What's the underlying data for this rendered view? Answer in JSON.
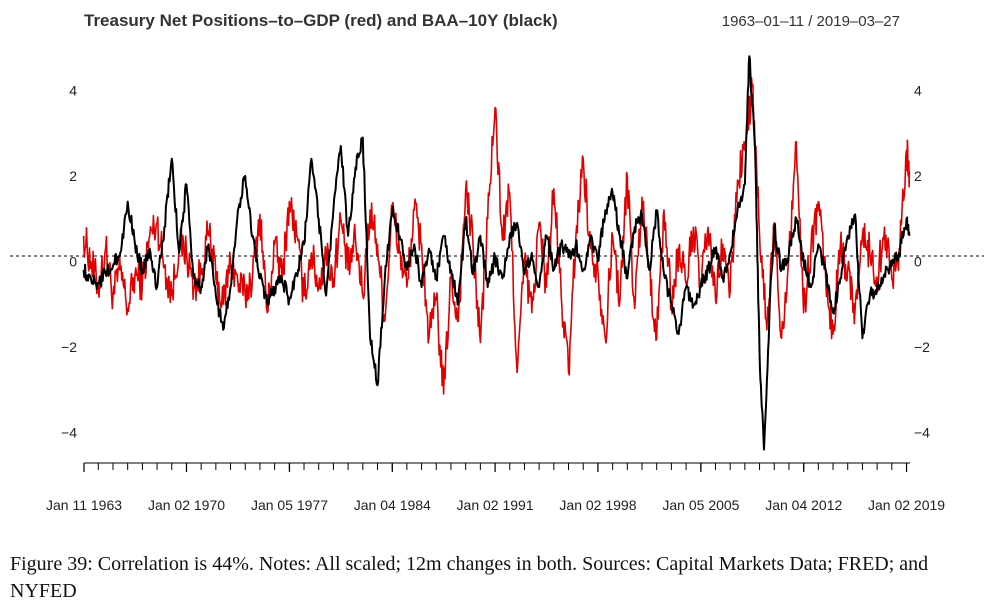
{
  "chart_data": {
    "type": "line",
    "title": "Treasury Net Positions–to–GDP (red) and BAA–10Y (black)",
    "date_range_label": "1963–01–11 / 2019–03–27",
    "x_range": [
      "1963-01-11",
      "2019-03-27"
    ],
    "ylim": [
      -4.6,
      4.9
    ],
    "y_ticks": [
      -4,
      -2,
      0,
      2,
      4
    ],
    "y_tick_labels": [
      "−4",
      "−2",
      "0",
      "2",
      "4"
    ],
    "x_tick_dates": [
      "1963-01-11",
      "1970-01-02",
      "1977-01-05",
      "1984-01-04",
      "1991-01-02",
      "1998-01-02",
      "2005-01-05",
      "2012-01-04",
      "2019-01-02"
    ],
    "x_tick_labels": [
      "Jan 11 1963",
      "Jan 02 1970",
      "Jan 05 1977",
      "Jan 04 1984",
      "Jan 02 1991",
      "Jan 02 1998",
      "Jan 05 2005",
      "Jan 04 2012",
      "Jan 02 2019"
    ],
    "zero_line": true,
    "grid": false,
    "series": [
      {
        "color": "#e00000",
        "x": [
          1963.0,
          1963.5,
          1964.0,
          1964.5,
          1965.0,
          1965.5,
          1966.0,
          1966.5,
          1967.0,
          1967.5,
          1968.0,
          1968.5,
          1969.0,
          1969.5,
          1970.0,
          1970.5,
          1971.0,
          1971.5,
          1972.0,
          1972.5,
          1973.0,
          1973.5,
          1974.0,
          1974.5,
          1975.0,
          1975.5,
          1976.0,
          1976.5,
          1977.0,
          1977.5,
          1978.0,
          1978.5,
          1979.0,
          1979.5,
          1980.0,
          1980.5,
          1981.0,
          1981.5,
          1982.0,
          1982.5,
          1983.0,
          1983.5,
          1984.0,
          1984.5,
          1985.0,
          1985.5,
          1986.0,
          1986.5,
          1987.0,
          1987.5,
          1988.0,
          1988.5,
          1989.0,
          1989.5,
          1990.0,
          1990.5,
          1991.0,
          1991.5,
          1992.0,
          1992.5,
          1993.0,
          1993.5,
          1994.0,
          1994.5,
          1995.0,
          1995.5,
          1996.0,
          1996.5,
          1997.0,
          1997.5,
          1998.0,
          1998.5,
          1999.0,
          1999.5,
          2000.0,
          2000.5,
          2001.0,
          2001.5,
          2002.0,
          2002.5,
          2003.0,
          2003.5,
          2004.0,
          2004.5,
          2005.0,
          2005.5,
          2006.0,
          2006.5,
          2007.0,
          2007.5,
          2008.0,
          2008.5,
          2009.0,
          2009.5,
          2010.0,
          2010.5,
          2011.0,
          2011.5,
          2012.0,
          2012.5,
          2013.0,
          2013.5,
          2014.0,
          2014.5,
          2015.0,
          2015.5,
          2016.0,
          2016.5,
          2017.0,
          2017.5,
          2018.0,
          2018.5,
          2019.0,
          2019.2
        ],
        "values": [
          0.6,
          0.0,
          -0.6,
          0.3,
          -0.8,
          -0.2,
          -1.1,
          -0.3,
          -0.5,
          0.6,
          0.9,
          -0.1,
          -0.8,
          0.4,
          0.2,
          -0.6,
          -0.3,
          0.7,
          -0.4,
          -1.0,
          0.0,
          -0.5,
          -0.8,
          -0.3,
          1.1,
          -1.2,
          0.4,
          -0.4,
          1.4,
          0.6,
          -0.8,
          0.2,
          -0.6,
          0.2,
          -0.4,
          1.0,
          -0.2,
          0.5,
          -0.8,
          1.2,
          0.4,
          -1.4,
          1.3,
          0.2,
          -0.6,
          1.2,
          0.4,
          -1.8,
          -0.9,
          -3.1,
          -0.4,
          -1.4,
          1.7,
          0.4,
          -1.9,
          1.0,
          3.6,
          0.5,
          1.6,
          -2.6,
          0.0,
          -1.2,
          0.9,
          -0.6,
          1.7,
          -0.8,
          -2.6,
          0.6,
          2.4,
          0.3,
          -0.2,
          -1.8,
          0.6,
          -0.9,
          2.0,
          -1.1,
          1.5,
          -0.2,
          -1.8,
          1.2,
          -1.0,
          0.3,
          -0.5,
          0.8,
          -0.6,
          0.8,
          -0.9,
          0.4,
          -0.7,
          1.9,
          2.6,
          4.1,
          0.6,
          -1.6,
          0.9,
          -1.8,
          0.2,
          2.8,
          -1.2,
          0.3,
          1.4,
          -0.4,
          -1.7,
          0.4,
          -0.2,
          -1.1,
          0.6,
          0.2,
          -0.4,
          0.8,
          -0.4,
          0.3,
          2.6,
          2.1
        ]
      },
      {
        "color": "#000000",
        "x": [
          1963.0,
          1963.5,
          1964.0,
          1964.5,
          1965.0,
          1965.5,
          1966.0,
          1966.5,
          1967.0,
          1967.5,
          1968.0,
          1968.5,
          1969.0,
          1969.5,
          1970.0,
          1970.5,
          1971.0,
          1971.5,
          1972.0,
          1972.5,
          1973.0,
          1973.5,
          1974.0,
          1974.5,
          1975.0,
          1975.5,
          1976.0,
          1976.5,
          1977.0,
          1977.5,
          1978.0,
          1978.5,
          1979.0,
          1979.5,
          1980.0,
          1980.5,
          1981.0,
          1981.5,
          1982.0,
          1982.5,
          1983.0,
          1983.5,
          1984.0,
          1984.5,
          1985.0,
          1985.5,
          1986.0,
          1986.5,
          1987.0,
          1987.5,
          1988.0,
          1988.5,
          1989.0,
          1989.5,
          1990.0,
          1990.5,
          1991.0,
          1991.5,
          1992.0,
          1992.5,
          1993.0,
          1993.5,
          1994.0,
          1994.5,
          1995.0,
          1995.5,
          1996.0,
          1996.5,
          1997.0,
          1997.5,
          1998.0,
          1998.5,
          1999.0,
          1999.5,
          2000.0,
          2000.5,
          2001.0,
          2001.5,
          2002.0,
          2002.5,
          2003.0,
          2003.5,
          2004.0,
          2004.5,
          2005.0,
          2005.5,
          2006.0,
          2006.5,
          2007.0,
          2007.5,
          2008.0,
          2008.3,
          2008.7,
          2009.0,
          2009.3,
          2009.7,
          2010.0,
          2010.5,
          2011.0,
          2011.5,
          2012.0,
          2012.5,
          2013.0,
          2013.5,
          2014.0,
          2014.5,
          2015.0,
          2015.5,
          2016.0,
          2016.5,
          2017.0,
          2017.5,
          2018.0,
          2018.5,
          2019.0,
          2019.2
        ],
        "values": [
          -0.2,
          -0.4,
          -0.5,
          -0.3,
          -0.1,
          0.2,
          1.4,
          0.4,
          -0.2,
          0.3,
          -0.6,
          0.8,
          2.4,
          0.2,
          1.8,
          -0.4,
          -0.6,
          0.4,
          -0.8,
          -1.6,
          -0.6,
          1.2,
          2.0,
          0.6,
          -0.4,
          -1.0,
          -0.6,
          -0.4,
          -0.9,
          -0.3,
          0.4,
          2.4,
          1.0,
          -0.8,
          1.2,
          2.7,
          0.6,
          2.2,
          2.9,
          -1.8,
          -2.9,
          -0.4,
          1.2,
          0.6,
          -0.2,
          0.4,
          -0.6,
          0.3,
          -0.4,
          0.6,
          -0.2,
          -1.0,
          1.0,
          -0.3,
          0.6,
          -0.6,
          0.1,
          -0.4,
          0.6,
          0.9,
          -0.3,
          0.2,
          -0.6,
          0.6,
          -0.2,
          0.4,
          0.1,
          0.4,
          -0.2,
          0.6,
          0.0,
          1.2,
          1.6,
          0.6,
          -0.4,
          0.8,
          1.1,
          -0.2,
          1.2,
          -0.3,
          -1.0,
          -1.7,
          -0.6,
          -1.0,
          -0.6,
          -0.2,
          0.3,
          -0.4,
          0.2,
          1.2,
          1.8,
          4.8,
          2.6,
          -2.2,
          -4.4,
          -1.0,
          0.8,
          -0.2,
          0.2,
          1.0,
          0.0,
          -0.6,
          0.4,
          -0.2,
          -1.2,
          -0.4,
          0.6,
          1.1,
          -1.8,
          -0.8,
          -0.6,
          -0.3,
          -0.1,
          0.2,
          1.0,
          0.6
        ]
      }
    ]
  },
  "caption": "Figure 39: Correlation is 44%. Notes: All scaled; 12m changes in both. Sources: Capital Markets Data; FRED; and NYFED"
}
